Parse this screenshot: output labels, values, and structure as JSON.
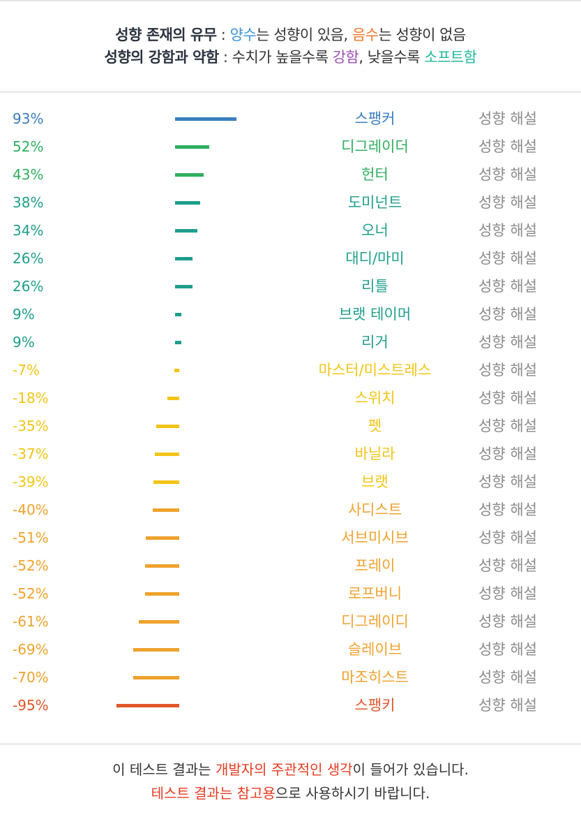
{
  "header": {
    "line1": {
      "bold": "성향 존재의 유무",
      "sep": " : ",
      "pos": "양수",
      "pos_tail": "는 성향이 있음, ",
      "neg": "음수",
      "neg_tail": "는 성향이 없음"
    },
    "line2": {
      "bold": "성향의 강함과 약함",
      "sep": " : 수치가 높을수록 ",
      "strong": "강함",
      "mid": ", 낮을수록 ",
      "soft": "소프트함"
    }
  },
  "explain_label": "성향 해설",
  "footer": {
    "line1": {
      "pre": "이 테스트 결과는 ",
      "hl": "개발자의 주관적인 생각",
      "post": "이 들어가 있습니다."
    },
    "line2": {
      "hl": "테스트 결과는 참고용",
      "post": "으로 사용하시기 바랍니다."
    }
  },
  "colors": {
    "blue": "#3a7dbf",
    "green": "#2fae5e",
    "teal": "#1f9e8c",
    "yellow": "#f2c416",
    "orange": "#efa22e",
    "red": "#e0562a",
    "pos_word": "#3b93d8",
    "neg_word": "#e8782b",
    "strong_word": "#9a4fb4",
    "soft_word": "#1fb89a",
    "footer_red": "#e53a1f"
  },
  "chart_data": {
    "type": "bar",
    "orientation": "horizontal",
    "unit": "%",
    "xlim": [
      -100,
      100
    ],
    "categories": [
      "스팽커",
      "디그레이더",
      "헌터",
      "도미넌트",
      "오너",
      "대디/마미",
      "리틀",
      "브랫 테이머",
      "리거",
      "마스터/미스트레스",
      "스위치",
      "펫",
      "바닐라",
      "브랫",
      "사디스트",
      "서브미시브",
      "프레이",
      "로프버니",
      "디그레이디",
      "슬레이브",
      "마조히스트",
      "스팽키"
    ],
    "values": [
      93,
      52,
      43,
      38,
      34,
      26,
      26,
      9,
      9,
      -7,
      -18,
      -35,
      -37,
      -39,
      -40,
      -51,
      -52,
      -52,
      -61,
      -69,
      -70,
      -95
    ],
    "labels": [
      "93%",
      "52%",
      "43%",
      "38%",
      "34%",
      "26%",
      "26%",
      "9%",
      "9%",
      "-7%",
      "-18%",
      "-35%",
      "-37%",
      "-39%",
      "-40%",
      "-51%",
      "-52%",
      "-52%",
      "-61%",
      "-69%",
      "-70%",
      "-95%"
    ],
    "colors": [
      "blue",
      "green",
      "green",
      "teal",
      "teal",
      "teal",
      "teal",
      "teal",
      "teal",
      "yellow",
      "yellow",
      "yellow",
      "yellow",
      "yellow",
      "orange",
      "orange",
      "orange",
      "orange",
      "orange",
      "orange",
      "orange",
      "red"
    ]
  }
}
